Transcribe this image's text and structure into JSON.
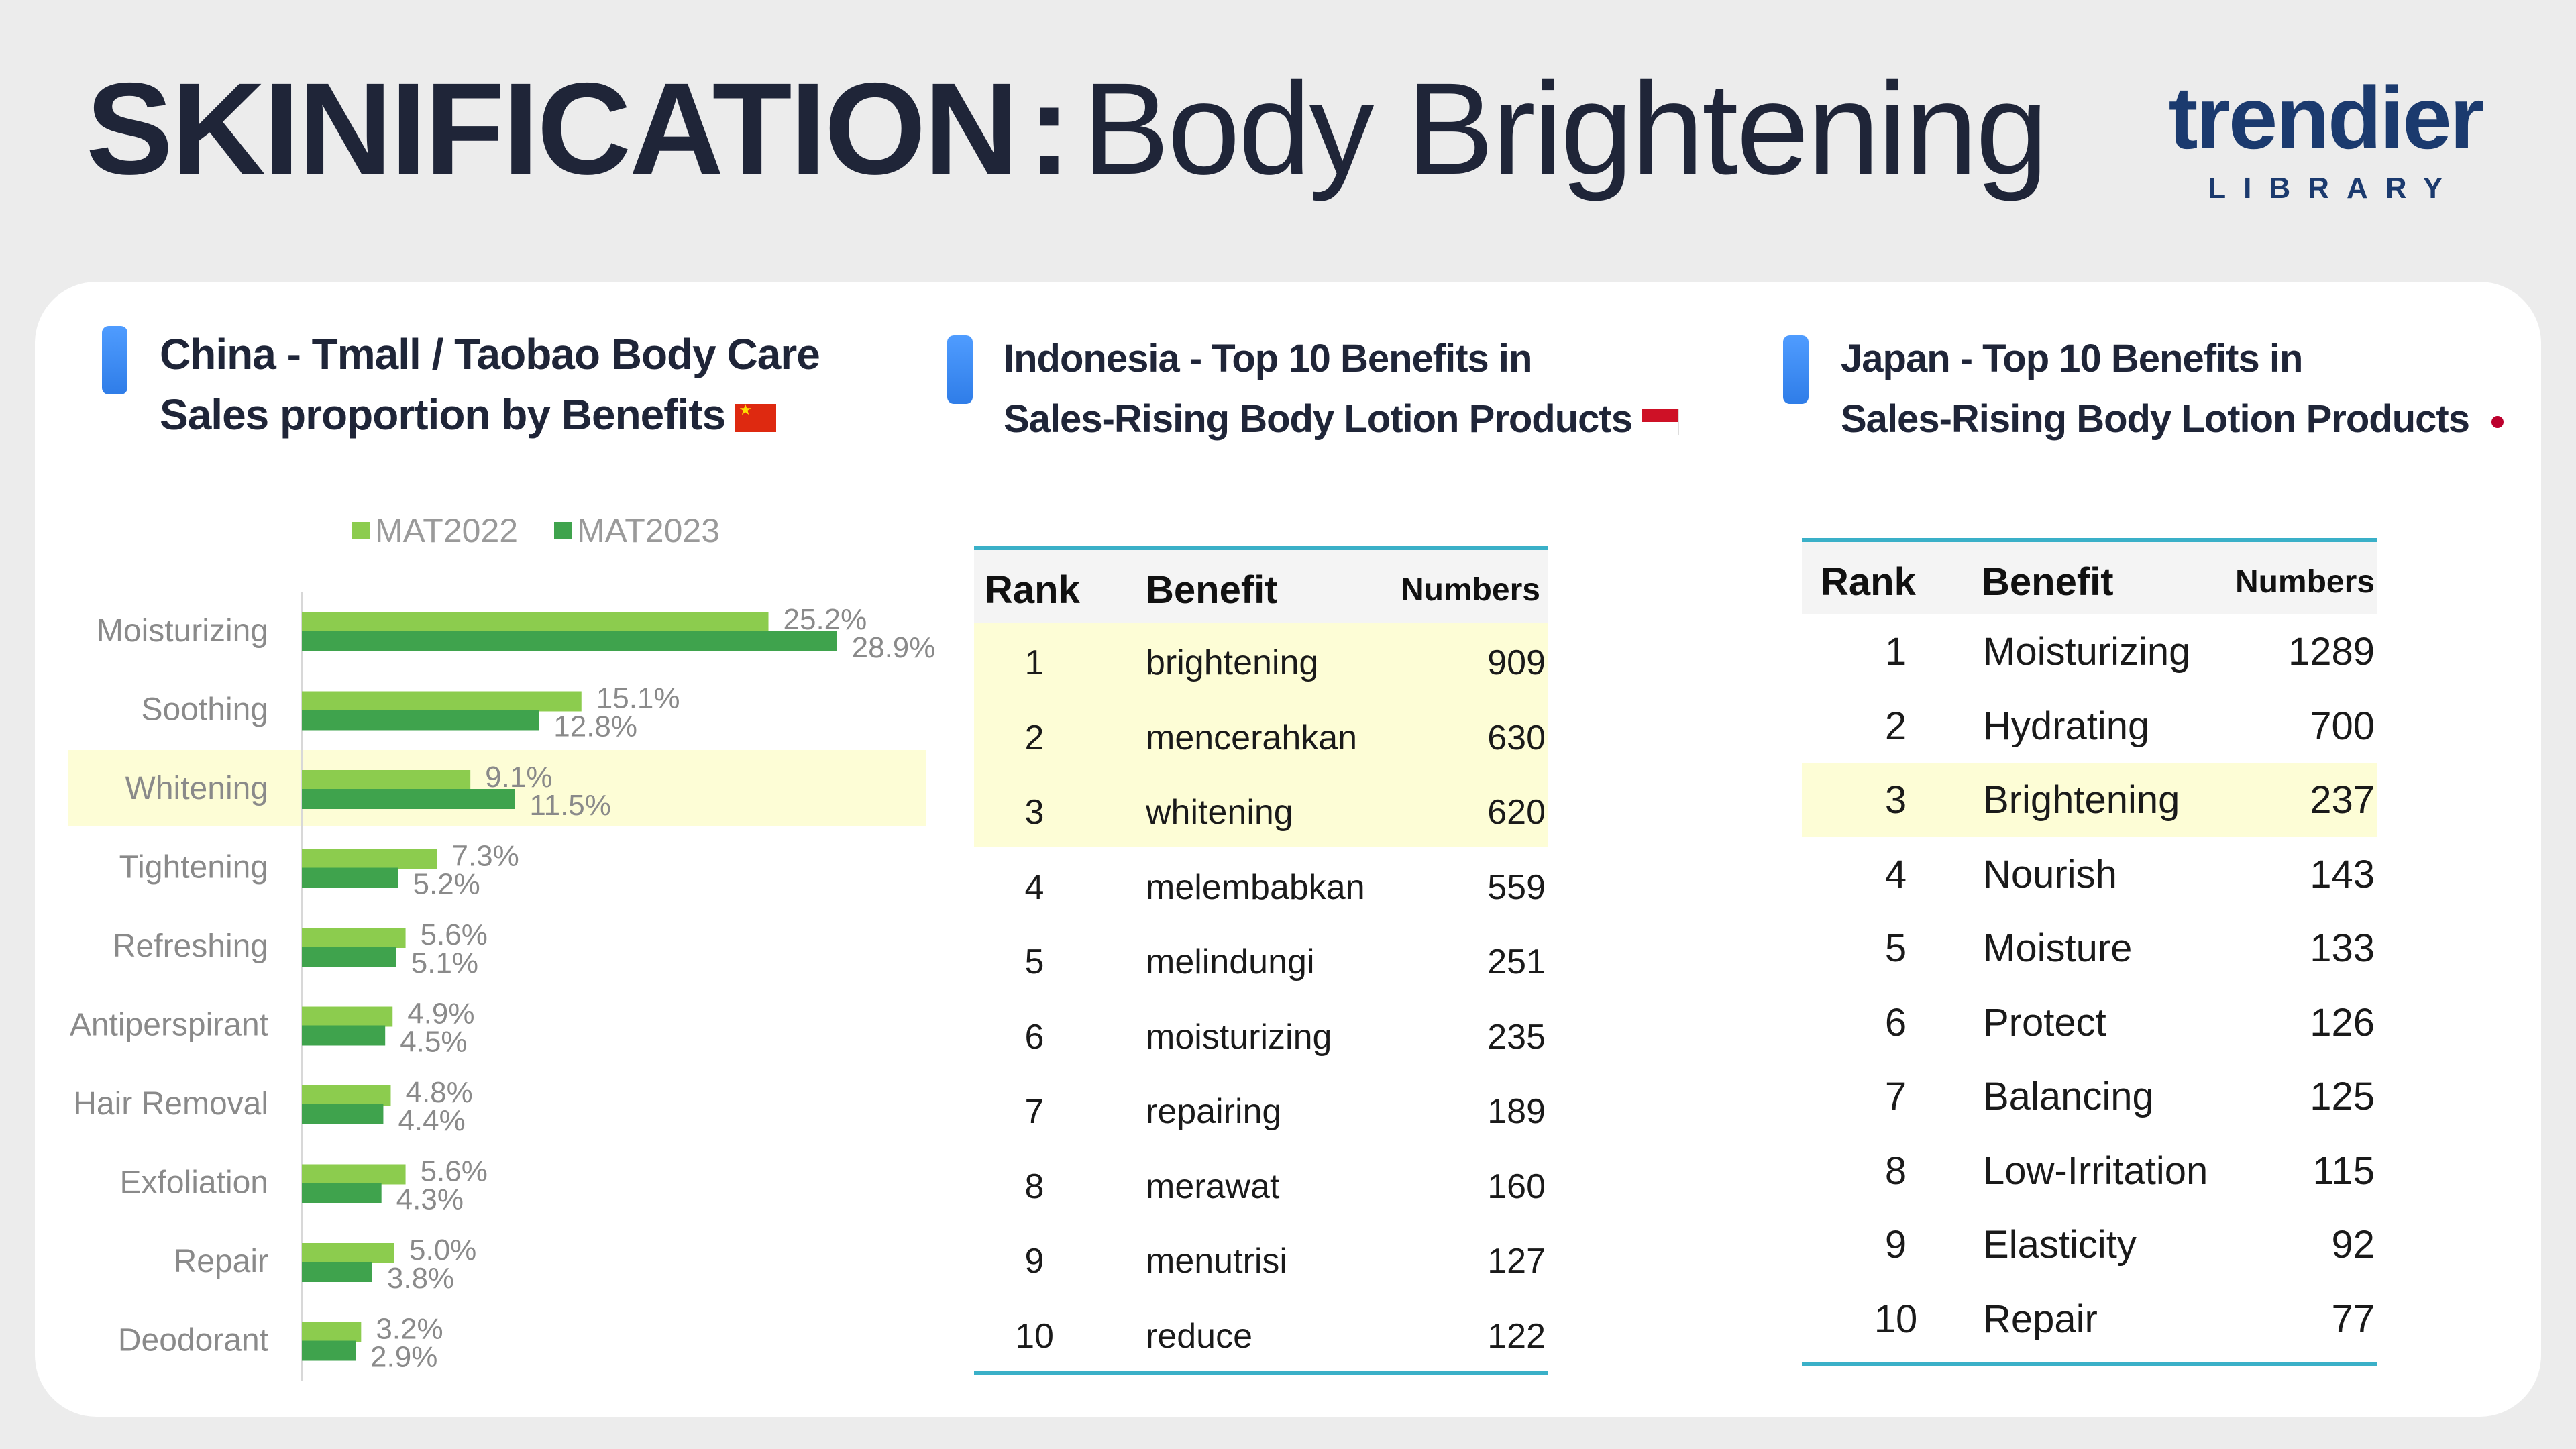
{
  "header": {
    "title_bold": "SKINIFICATION",
    "title_colon": ":",
    "title_light": "Body Brightening",
    "logo_word": "trendier",
    "logo_sub": "LIBRARY"
  },
  "sections": {
    "china": {
      "title_line1": "China - Tmall / Taobao Body Care",
      "title_line2": "Sales proportion by Benefits",
      "flag": "china-flag"
    },
    "indonesia": {
      "title_line1": "Indonesia - Top 10 Benefits in",
      "title_line2": "Sales-Rising Body Lotion Products",
      "flag": "indonesia-flag"
    },
    "japan": {
      "title_line1": "Japan - Top 10 Benefits in",
      "title_line2": "Sales-Rising Body Lotion Products",
      "flag": "japan-flag"
    }
  },
  "chart_data": {
    "type": "bar",
    "orientation": "horizontal",
    "categories": [
      "Moisturizing",
      "Soothing",
      "Whitening",
      "Tightening",
      "Refreshing",
      "Antiperspirant",
      "Hair Removal",
      "Exfoliation",
      "Repair",
      "Deodorant"
    ],
    "series": [
      {
        "name": "MAT2022",
        "values": [
          25.2,
          15.1,
          9.1,
          7.3,
          5.6,
          4.9,
          4.8,
          5.6,
          5.0,
          3.2
        ],
        "labels": [
          "25.2%",
          "15.1%",
          "9.1%",
          "7.3%",
          "5.6%",
          "4.9%",
          "4.8%",
          "5.6%",
          "5.0%",
          "3.2%"
        ],
        "color": "#8ccc4e"
      },
      {
        "name": "MAT2023",
        "values": [
          28.9,
          12.8,
          11.5,
          5.2,
          5.1,
          4.5,
          4.4,
          4.3,
          3.8,
          2.9
        ],
        "labels": [
          "28.9%",
          "12.8%",
          "11.5%",
          "5.2%",
          "5.1%",
          "4.5%",
          "4.4%",
          "4.3%",
          "3.8%",
          "2.9%"
        ],
        "color": "#3fa34d"
      }
    ],
    "highlighted_category": "Whitening",
    "highlight_color": "#fdfdd6",
    "legend_position": "top",
    "grid": false
  },
  "indonesia_table": {
    "headers": {
      "rank": "Rank",
      "benefit": "Benefit",
      "numbers": "Numbers"
    },
    "rows": [
      {
        "rank": "1",
        "benefit": "brightening",
        "numbers": "909"
      },
      {
        "rank": "2",
        "benefit": "mencerahkan",
        "numbers": "630"
      },
      {
        "rank": "3",
        "benefit": "whitening",
        "numbers": "620"
      },
      {
        "rank": "4",
        "benefit": "melembabkan",
        "numbers": "559"
      },
      {
        "rank": "5",
        "benefit": "melindungi",
        "numbers": "251"
      },
      {
        "rank": "6",
        "benefit": "moisturizing",
        "numbers": "235"
      },
      {
        "rank": "7",
        "benefit": "repairing",
        "numbers": "189"
      },
      {
        "rank": "8",
        "benefit": "merawat",
        "numbers": "160"
      },
      {
        "rank": "9",
        "benefit": "menutrisi",
        "numbers": "127"
      },
      {
        "rank": "10",
        "benefit": "reduce",
        "numbers": "122"
      }
    ],
    "highlighted_ranks": [
      "1",
      "2",
      "3"
    ]
  },
  "japan_table": {
    "headers": {
      "rank": "Rank",
      "benefit": "Benefit",
      "numbers": "Numbers"
    },
    "rows": [
      {
        "rank": "1",
        "benefit": "Moisturizing",
        "numbers": "1289"
      },
      {
        "rank": "2",
        "benefit": "Hydrating",
        "numbers": "700"
      },
      {
        "rank": "3",
        "benefit": "Brightening",
        "numbers": "237"
      },
      {
        "rank": "4",
        "benefit": "Nourish",
        "numbers": "143"
      },
      {
        "rank": "5",
        "benefit": "Moisture",
        "numbers": "133"
      },
      {
        "rank": "6",
        "benefit": "Protect",
        "numbers": "126"
      },
      {
        "rank": "7",
        "benefit": "Balancing",
        "numbers": "125"
      },
      {
        "rank": "8",
        "benefit": "Low-Irritation",
        "numbers": "115"
      },
      {
        "rank": "9",
        "benefit": "Elasticity",
        "numbers": "92"
      },
      {
        "rank": "10",
        "benefit": "Repair",
        "numbers": "77"
      }
    ],
    "highlighted_ranks": [
      "3"
    ]
  }
}
